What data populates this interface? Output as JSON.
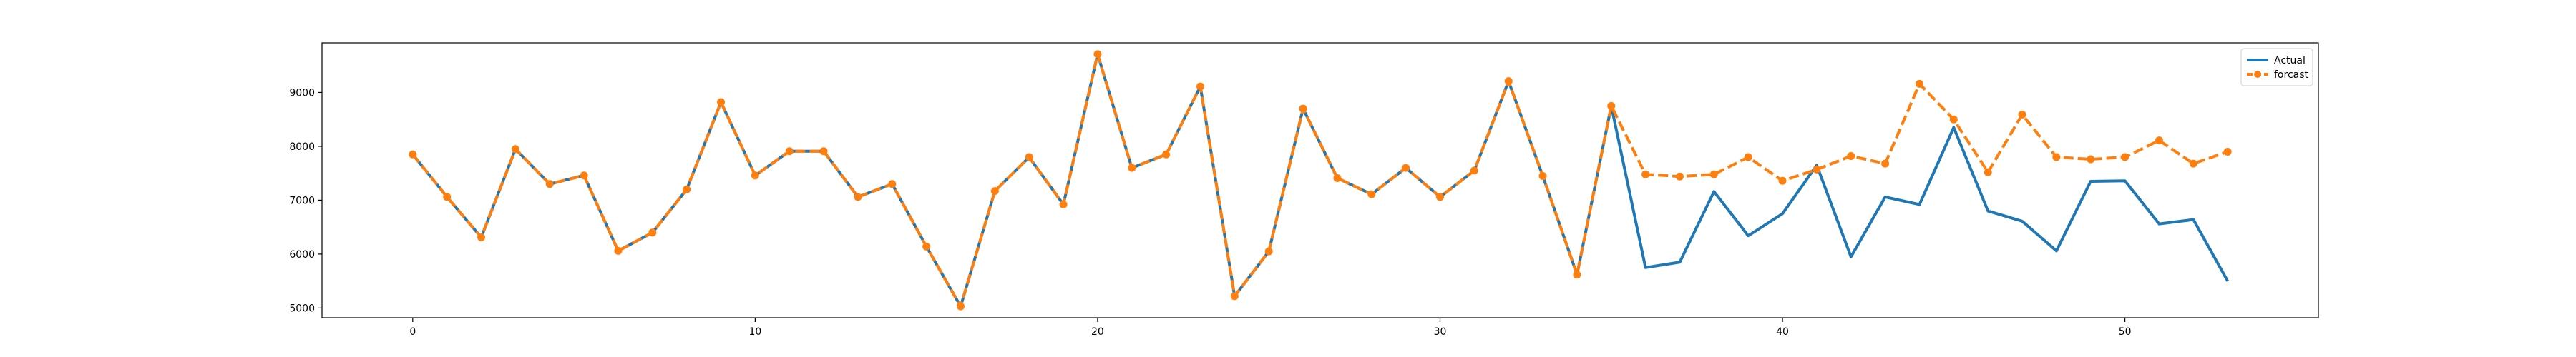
{
  "chart_data": {
    "type": "line",
    "title": "",
    "xlabel": "",
    "ylabel": "",
    "x": [
      0,
      1,
      2,
      3,
      4,
      5,
      6,
      7,
      8,
      9,
      10,
      11,
      12,
      13,
      14,
      15,
      16,
      17,
      18,
      19,
      20,
      21,
      22,
      23,
      24,
      25,
      26,
      27,
      28,
      29,
      30,
      31,
      32,
      33,
      34,
      35,
      36,
      37,
      38,
      39,
      40,
      41,
      42,
      43,
      44,
      45,
      46,
      47,
      48,
      49,
      50,
      51,
      52,
      53
    ],
    "xlim": [
      -2.65,
      55.65
    ],
    "ylim": [
      4820,
      9920
    ],
    "xticks": [
      0,
      10,
      20,
      30,
      40,
      50
    ],
    "yticks": [
      5000,
      6000,
      7000,
      8000,
      9000
    ],
    "grid": false,
    "legend_position": "top-right",
    "series": [
      {
        "name": "Actual",
        "color": "#1f77b4",
        "style": "solid",
        "marker": "none",
        "values": [
          7850,
          7060,
          6310,
          7950,
          7300,
          7460,
          6060,
          6400,
          7200,
          8820,
          7460,
          7910,
          7910,
          7060,
          7300,
          6140,
          5030,
          7170,
          7800,
          6920,
          9710,
          7600,
          7850,
          9110,
          5220,
          6050,
          8700,
          7410,
          7110,
          7600,
          7060,
          7550,
          9210,
          7450,
          5620,
          8750,
          5750,
          5850,
          7160,
          6340,
          6750,
          7650,
          5950,
          7060,
          6920,
          8350,
          6800,
          6610,
          6060,
          7350,
          7360,
          6560,
          6640,
          5500
        ]
      },
      {
        "name": "forcast",
        "color": "#ff7f0e",
        "style": "dashed",
        "marker": "circle",
        "values": [
          7850,
          7060,
          6310,
          7950,
          7300,
          7460,
          6060,
          6400,
          7200,
          8820,
          7460,
          7910,
          7910,
          7060,
          7300,
          6140,
          5030,
          7170,
          7800,
          6920,
          9710,
          7600,
          7850,
          9110,
          5220,
          6050,
          8700,
          7410,
          7110,
          7600,
          7060,
          7550,
          9210,
          7450,
          5620,
          8750,
          7480,
          7440,
          7480,
          7800,
          7360,
          7570,
          7820,
          7680,
          9160,
          8500,
          7520,
          8590,
          7800,
          7760,
          7800,
          8110,
          7680,
          7900
        ]
      }
    ]
  }
}
